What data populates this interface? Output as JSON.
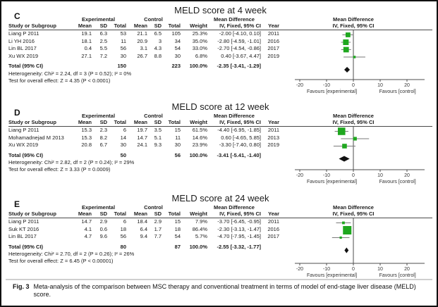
{
  "figure": {
    "caption_label": "Fig. 3",
    "caption_text": "Meta-analysis of the comparison between MSC therapy and conventional treatment in terms of model of end-stage liver disease (MELD) score."
  },
  "table_headers": {
    "group_experimental": "Experimental",
    "group_control": "Control",
    "group_mean_difference": "Mean Difference",
    "study": "Study or Subgroup",
    "mean": "Mean",
    "sd": "SD",
    "total": "Total",
    "weight": "Weight",
    "ci": "IV, Fixed, 95% CI",
    "year": "Year",
    "plot_line1": "Mean Difference",
    "plot_line2": "IV, Fixed, 95% CI"
  },
  "axis": {
    "ticks": [
      -20,
      -10,
      0,
      10,
      20
    ],
    "favours_left": "Favours [experimental]",
    "favours_right": "Favours [control]"
  },
  "colors": {
    "marker_green": "#1fa71f",
    "diamond_black": "#111111",
    "ci_line_gray": "#7a7a7a",
    "axis_gray": "#4d4d4d"
  },
  "chart_data": [
    {
      "type": "forest",
      "label": "C",
      "title": "MELD score at 4 week",
      "studies": [
        {
          "study": "Liang P 2011",
          "exp_mean": "19.1",
          "exp_sd": "6.3",
          "exp_total": "53",
          "ctl_mean": "21.1",
          "ctl_sd": "6.5",
          "ctl_total": "105",
          "weight": "25.3%",
          "ci_text": "-2.00 [-4.10, 0.10]",
          "year": "2011",
          "est": -2.0,
          "lo": -4.1,
          "hi": 0.1,
          "weight_pct": 25.3
        },
        {
          "study": "Li YH 2016",
          "exp_mean": "18.1",
          "exp_sd": "2.5",
          "exp_total": "11",
          "ctl_mean": "20.9",
          "ctl_sd": "3",
          "ctl_total": "34",
          "weight": "35.0%",
          "ci_text": "-2.80 [-4.59, -1.01]",
          "year": "2016",
          "est": -2.8,
          "lo": -4.59,
          "hi": -1.01,
          "weight_pct": 35.0
        },
        {
          "study": "Lin BL 2017",
          "exp_mean": "0.4",
          "exp_sd": "5.5",
          "exp_total": "56",
          "ctl_mean": "3.1",
          "ctl_sd": "4.3",
          "ctl_total": "54",
          "weight": "33.0%",
          "ci_text": "-2.70 [-4.54, -0.86]",
          "year": "2017",
          "est": -2.7,
          "lo": -4.54,
          "hi": -0.86,
          "weight_pct": 33.0
        },
        {
          "study": "Xu WX 2019",
          "exp_mean": "27.1",
          "exp_sd": "7.2",
          "exp_total": "30",
          "ctl_mean": "26.7",
          "ctl_sd": "8.8",
          "ctl_total": "30",
          "weight": "6.8%",
          "ci_text": "0.40 [-3.67, 4.47]",
          "year": "2019",
          "est": 0.4,
          "lo": -3.67,
          "hi": 4.47,
          "weight_pct": 6.8
        }
      ],
      "total": {
        "label": "Total (95% CI)",
        "exp_total": "150",
        "ctl_total": "223",
        "weight": "100.0%",
        "ci_text": "-2.35 [-3.41, -1.29]",
        "est": -2.35,
        "lo": -3.41,
        "hi": -1.29
      },
      "heterogeneity": "Heterogeneity: Chi² = 2.24, df = 3 (P = 0.52); I² = 0%",
      "overall_effect": "Test for overall effect: Z = 4.35 (P < 0.0001)"
    },
    {
      "type": "forest",
      "label": "D",
      "title": "MELD score at 12 week",
      "studies": [
        {
          "study": "Liang P 2011",
          "exp_mean": "15.3",
          "exp_sd": "2.3",
          "exp_total": "6",
          "ctl_mean": "19.7",
          "ctl_sd": "3.5",
          "ctl_total": "15",
          "weight": "61.5%",
          "ci_text": "-4.40 [-6.95, -1.85]",
          "year": "2011",
          "est": -4.4,
          "lo": -6.95,
          "hi": -1.85,
          "weight_pct": 61.5
        },
        {
          "study": "Mohamadnejad M 2013",
          "exp_mean": "15.3",
          "exp_sd": "8.2",
          "exp_total": "14",
          "ctl_mean": "14.7",
          "ctl_sd": "5.1",
          "ctl_total": "11",
          "weight": "14.6%",
          "ci_text": "0.60 [-4.65, 5.85]",
          "year": "2013",
          "est": 0.6,
          "lo": -4.65,
          "hi": 5.85,
          "weight_pct": 14.6
        },
        {
          "study": "Xu WX 2019",
          "exp_mean": "20.8",
          "exp_sd": "6.7",
          "exp_total": "30",
          "ctl_mean": "24.1",
          "ctl_sd": "9.3",
          "ctl_total": "30",
          "weight": "23.9%",
          "ci_text": "-3.30 [-7.40, 0.80]",
          "year": "2019",
          "est": -3.3,
          "lo": -7.4,
          "hi": 0.8,
          "weight_pct": 23.9
        }
      ],
      "total": {
        "label": "Total (95% CI)",
        "exp_total": "50",
        "ctl_total": "56",
        "weight": "100.0%",
        "ci_text": "-3.41 [-5.41, -1.40]",
        "est": -3.41,
        "lo": -5.41,
        "hi": -1.4
      },
      "heterogeneity": "Heterogeneity: Chi² = 2.82, df = 2 (P = 0.24); I² = 29%",
      "overall_effect": "Test for overall effect: Z = 3.33 (P = 0.0009)"
    },
    {
      "type": "forest",
      "label": "E",
      "title": "MELD score at 24 week",
      "studies": [
        {
          "study": "Liang P 2011",
          "exp_mean": "14.7",
          "exp_sd": "2.9",
          "exp_total": "6",
          "ctl_mean": "18.4",
          "ctl_sd": "2.9",
          "ctl_total": "15",
          "weight": "7.9%",
          "ci_text": "-3.70 [-6.45, -0.95]",
          "year": "2011",
          "est": -3.7,
          "lo": -6.45,
          "hi": -0.95,
          "weight_pct": 7.9
        },
        {
          "study": "Suk KT 2016",
          "exp_mean": "4.1",
          "exp_sd": "0.6",
          "exp_total": "18",
          "ctl_mean": "6.4",
          "ctl_sd": "1.7",
          "ctl_total": "18",
          "weight": "86.4%",
          "ci_text": "-2.30 [-3.13, -1.47]",
          "year": "2016",
          "est": -2.3,
          "lo": -3.13,
          "hi": -1.47,
          "weight_pct": 86.4
        },
        {
          "study": "Lin BL 2017",
          "exp_mean": "4.7",
          "exp_sd": "9.6",
          "exp_total": "56",
          "ctl_mean": "9.4",
          "ctl_sd": "7.7",
          "ctl_total": "54",
          "weight": "5.7%",
          "ci_text": "-4.70 [-7.95, -1.45]",
          "year": "2017",
          "est": -4.7,
          "lo": -7.95,
          "hi": -1.45,
          "weight_pct": 5.7
        }
      ],
      "total": {
        "label": "Total (95% CI)",
        "exp_total": "80",
        "ctl_total": "87",
        "weight": "100.0%",
        "ci_text": "-2.55 [-3.32, -1.77]",
        "est": -2.55,
        "lo": -3.32,
        "hi": -1.77
      },
      "heterogeneity": "Heterogeneity: Chi² = 2.70, df = 2 (P = 0.26); I² = 26%",
      "overall_effect": "Test for overall effect: Z = 6.45 (P < 0.00001)"
    }
  ]
}
